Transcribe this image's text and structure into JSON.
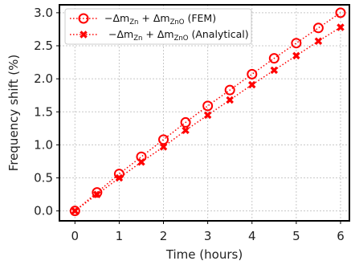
{
  "chart_data": {
    "type": "line",
    "xlabel": "Time (hours)",
    "ylabel": "Frequency shift (%)",
    "xlim": [
      -0.35,
      6.2
    ],
    "ylim": [
      -0.15,
      3.12
    ],
    "xticks": [
      0,
      1,
      2,
      3,
      4,
      5,
      6
    ],
    "yticks": [
      0.0,
      0.5,
      1.0,
      1.5,
      2.0,
      2.5,
      3.0
    ],
    "xtick_labels": [
      "0",
      "1",
      "2",
      "3",
      "4",
      "5",
      "6"
    ],
    "ytick_labels": [
      "0.0",
      "0.5",
      "1.0",
      "1.5",
      "2.0",
      "2.5",
      "3.0"
    ],
    "grid": true,
    "legend_position": "top-left",
    "series": [
      {
        "name": "−Δm_Zn + Δm_ZnO (FEM)",
        "legend_main": "−Δm",
        "legend_sub1": "Zn",
        "legend_mid": " + Δm",
        "legend_sub2": "ZnO",
        "legend_tail": " (FEM)",
        "marker": "open-circle",
        "line_style": "dotted",
        "color": "#ff0000",
        "x": [
          0,
          0.5,
          1,
          1.5,
          2,
          2.5,
          3,
          3.5,
          4,
          4.5,
          5,
          5.5,
          6
        ],
        "y": [
          0.0,
          0.28,
          0.56,
          0.82,
          1.08,
          1.34,
          1.59,
          1.83,
          2.07,
          2.31,
          2.54,
          2.77,
          3.0
        ]
      },
      {
        "name": "−Δm_Zn + Δm_ZnO (Analytical)",
        "legend_main": "−Δm",
        "legend_sub1": "Zn",
        "legend_mid": " + Δm",
        "legend_sub2": "ZnO",
        "legend_tail": " (Analytical)",
        "marker": "x",
        "line_style": "dotted",
        "color": "#ff0000",
        "x": [
          0,
          0.5,
          1,
          1.5,
          2,
          2.5,
          3,
          3.5,
          4,
          4.5,
          5,
          5.5,
          6
        ],
        "y": [
          0.0,
          0.25,
          0.5,
          0.74,
          0.97,
          1.22,
          1.45,
          1.68,
          1.91,
          2.13,
          2.35,
          2.57,
          2.78
        ]
      }
    ]
  }
}
